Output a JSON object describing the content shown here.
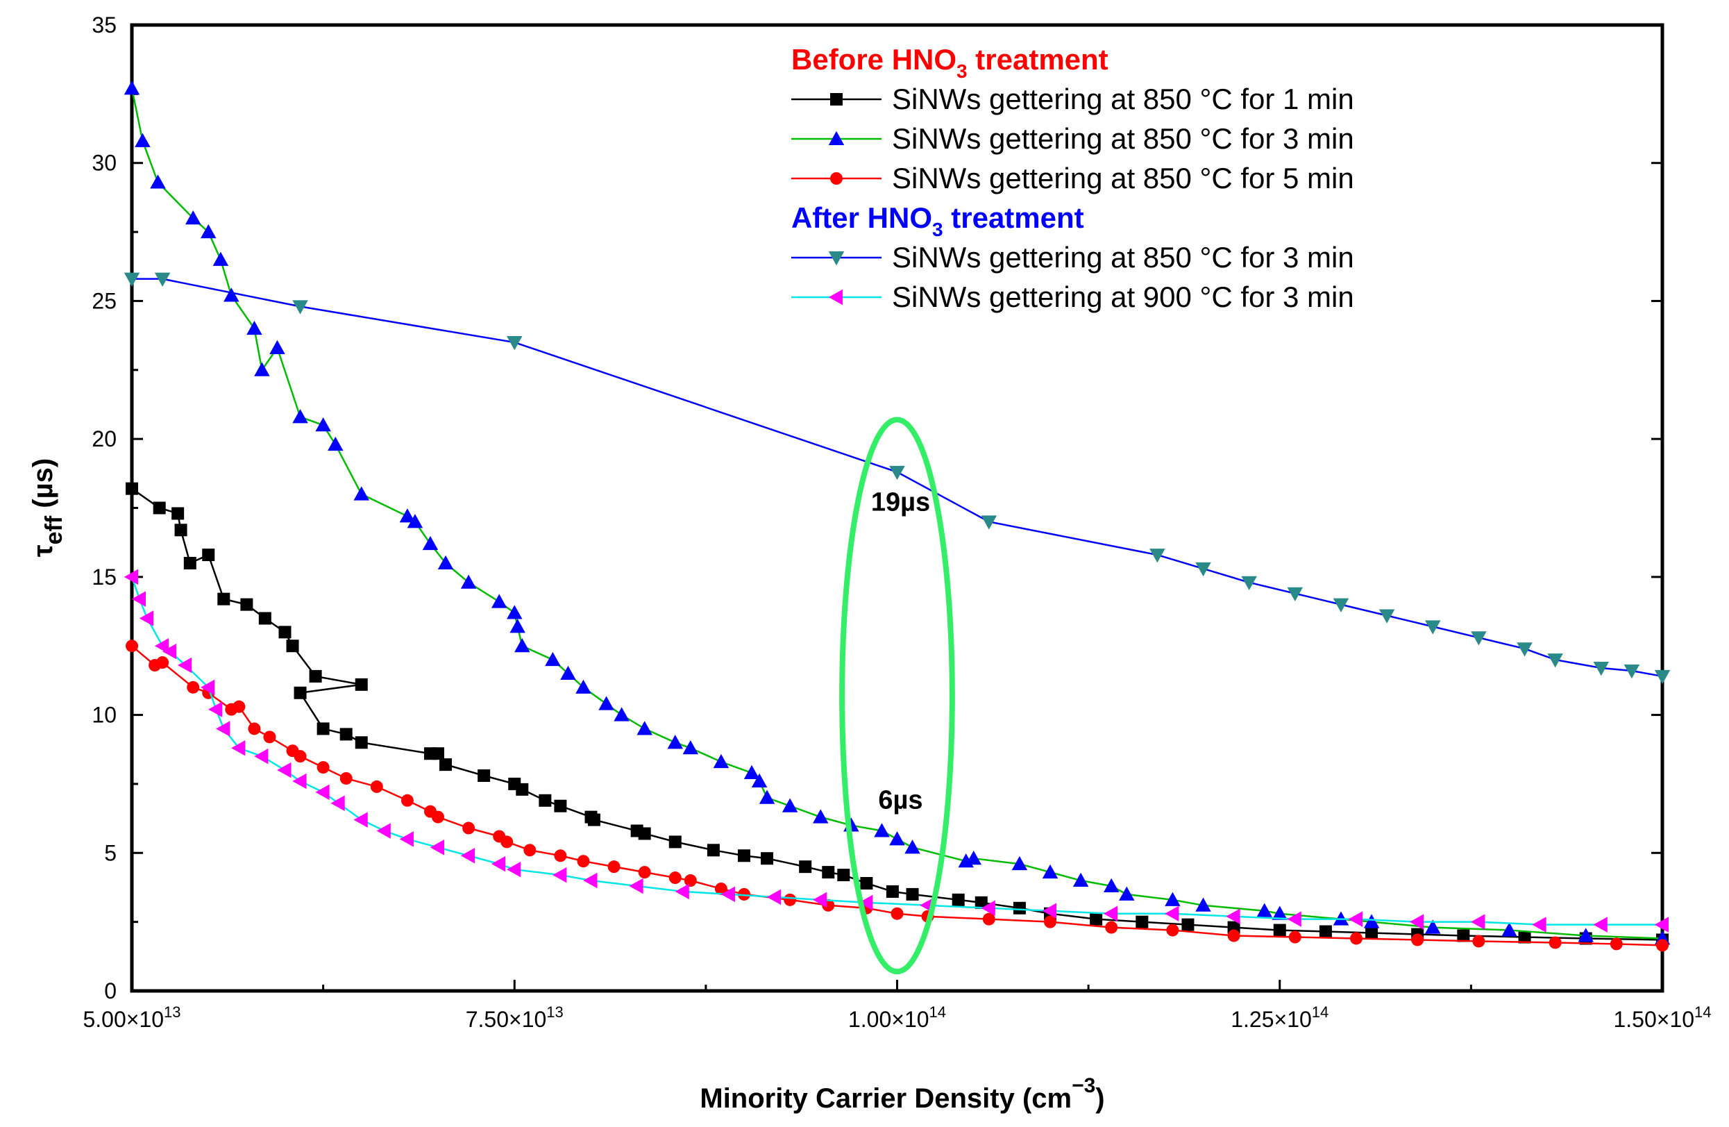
{
  "chart_data": {
    "type": "line",
    "xlabel": "Minority Carrier Density (cm",
    "xlabel_sup": "−3",
    "xlabel_end": ")",
    "ylabel_main": "τ",
    "ylabel_sub": "eff",
    "ylabel_unit": " (µs)",
    "xlim": [
      50000000000000.0,
      150000000000000.0
    ],
    "ylim": [
      0,
      35
    ],
    "x_ticks": [
      {
        "value": 50000000000000.0,
        "mantissa": "5.00×10",
        "exp": "13"
      },
      {
        "value": 75000000000000.0,
        "mantissa": "7.50×10",
        "exp": "13"
      },
      {
        "value": 100000000000000.0,
        "mantissa": "1.00×10",
        "exp": "14"
      },
      {
        "value": 125000000000000.0,
        "mantissa": "1.25×10",
        "exp": "14"
      },
      {
        "value": 150000000000000.0,
        "mantissa": "1.50×10",
        "exp": "14"
      }
    ],
    "y_ticks": [
      "0",
      "5",
      "10",
      "15",
      "20",
      "25",
      "30",
      "35"
    ],
    "legend_groups": [
      {
        "title_pre": "Before HNO",
        "title_sub": "3",
        "title_post": " treatment",
        "color": "#ff0000"
      },
      {
        "title_pre": "After HNO",
        "title_sub": "3",
        "title_post": " treatment",
        "color": "#0000ff"
      }
    ],
    "series": [
      {
        "name": "SiNWs gettering at 850 °C for 1 min",
        "group": 0,
        "marker": "square",
        "line_color": "#000000",
        "marker_color": "#000000",
        "x": [
          50000000000000.0,
          51800000000000.0,
          53000000000000.0,
          53200000000000.0,
          53800000000000.0,
          55000000000000.0,
          56000000000000.0,
          57500000000000.0,
          58700000000000.0,
          60000000000000.0,
          60500000000000.0,
          62000000000000.0,
          65000000000000.0,
          61000000000000.0,
          62500000000000.0,
          64000000000000.0,
          65000000000000.0,
          69500000000000.0,
          70000000000000.0,
          70500000000000.0,
          73000000000000.0,
          75000000000000.0,
          75500000000000.0,
          77000000000000.0,
          78000000000000.0,
          80000000000000.0,
          80200000000000.0,
          83000000000000.0,
          83500000000000.0,
          85500000000000.0,
          88000000000000.0,
          90000000000000.0,
          91500000000000.0,
          94000000000000.0,
          95500000000000.0,
          96500000000000.0,
          98000000000000.0,
          99700000000000.0,
          101000000000000.0,
          104000000000000.0,
          105500000000000.0,
          108000000000000.0,
          110000000000000.0,
          113000000000000.0,
          116000000000000.0,
          119000000000000.0,
          122000000000000.0,
          125000000000000.0,
          128000000000000.0,
          131000000000000.0,
          134000000000000.0,
          137000000000000.0,
          141000000000000.0,
          145000000000000.0,
          150000000000000.0
        ],
        "y": [
          18.2,
          17.5,
          17.3,
          16.7,
          15.5,
          15.8,
          14.2,
          14.0,
          13.5,
          13.0,
          12.5,
          11.4,
          11.1,
          10.8,
          9.5,
          9.3,
          9.0,
          8.6,
          8.6,
          8.2,
          7.8,
          7.5,
          7.3,
          6.9,
          6.7,
          6.3,
          6.2,
          5.8,
          5.7,
          5.4,
          5.1,
          4.9,
          4.8,
          4.5,
          4.3,
          4.2,
          3.9,
          3.6,
          3.5,
          3.3,
          3.2,
          3.0,
          2.8,
          2.6,
          2.5,
          2.4,
          2.3,
          2.2,
          2.15,
          2.1,
          2.05,
          2.0,
          1.95,
          1.9,
          1.85
        ]
      },
      {
        "name": "SiNWs gettering at 850 °C for 3 min",
        "group": 0,
        "marker": "triangle-up",
        "line_color": "#00bb00",
        "marker_color": "#0000ff",
        "x": [
          50000000000000.0,
          50700000000000.0,
          51700000000000.0,
          54000000000000.0,
          55000000000000.0,
          55800000000000.0,
          56500000000000.0,
          58000000000000.0,
          58500000000000.0,
          59500000000000.0,
          61000000000000.0,
          62500000000000.0,
          63300000000000.0,
          65000000000000.0,
          68000000000000.0,
          68500000000000.0,
          69500000000000.0,
          70500000000000.0,
          72000000000000.0,
          74000000000000.0,
          75000000000000.0,
          75200000000000.0,
          75500000000000.0,
          77500000000000.0,
          78500000000000.0,
          79500000000000.0,
          81000000000000.0,
          82000000000000.0,
          83500000000000.0,
          85500000000000.0,
          86500000000000.0,
          88500000000000.0,
          90500000000000.0,
          91000000000000.0,
          91500000000000.0,
          93000000000000.0,
          95000000000000.0,
          97000000000000.0,
          99000000000000.0,
          100000000000000.0,
          101000000000000.0,
          104500000000000.0,
          105000000000000.0,
          108000000000000.0,
          110000000000000.0,
          112000000000000.0,
          114000000000000.0,
          115000000000000.0,
          118000000000000.0,
          120000000000000.0,
          124000000000000.0,
          125000000000000.0,
          129000000000000.0,
          131000000000000.0,
          135000000000000.0,
          140000000000000.0,
          145000000000000.0,
          150000000000000.0
        ],
        "y": [
          32.7,
          30.8,
          29.3,
          28.0,
          27.5,
          26.5,
          25.2,
          24.0,
          22.5,
          23.3,
          20.8,
          20.5,
          19.8,
          18.0,
          17.2,
          17.0,
          16.2,
          15.5,
          14.8,
          14.1,
          13.7,
          13.2,
          12.5,
          12.0,
          11.5,
          11.0,
          10.4,
          10.0,
          9.5,
          9.0,
          8.8,
          8.3,
          7.9,
          7.6,
          7.0,
          6.7,
          6.3,
          6.0,
          5.8,
          5.5,
          5.2,
          4.7,
          4.8,
          4.6,
          4.3,
          4.0,
          3.8,
          3.5,
          3.3,
          3.1,
          2.9,
          2.8,
          2.6,
          2.5,
          2.3,
          2.2,
          2.0,
          1.9
        ]
      },
      {
        "name": "SiNWs gettering at 850 °C for 5 min",
        "group": 0,
        "marker": "circle",
        "line_color": "#ff0000",
        "marker_color": "#ff0000",
        "x": [
          50000000000000.0,
          51500000000000.0,
          52000000000000.0,
          54000000000000.0,
          55000000000000.0,
          56500000000000.0,
          57000000000000.0,
          58000000000000.0,
          59000000000000.0,
          60500000000000.0,
          61000000000000.0,
          62500000000000.0,
          64000000000000.0,
          66000000000000.0,
          68000000000000.0,
          69500000000000.0,
          70000000000000.0,
          72000000000000.0,
          74000000000000.0,
          74500000000000.0,
          76000000000000.0,
          78000000000000.0,
          79500000000000.0,
          81500000000000.0,
          83500000000000.0,
          85500000000000.0,
          86500000000000.0,
          88500000000000.0,
          90000000000000.0,
          93000000000000.0,
          95500000000000.0,
          98000000000000.0,
          100000000000000.0,
          102000000000000.0,
          106000000000000.0,
          110000000000000.0,
          114000000000000.0,
          118000000000000.0,
          122000000000000.0,
          126000000000000.0,
          130000000000000.0,
          134000000000000.0,
          138000000000000.0,
          143000000000000.0,
          147000000000000.0,
          150000000000000.0
        ],
        "y": [
          12.5,
          11.8,
          11.9,
          11.0,
          10.8,
          10.2,
          10.3,
          9.5,
          9.2,
          8.7,
          8.5,
          8.1,
          7.7,
          7.4,
          6.9,
          6.5,
          6.3,
          5.9,
          5.6,
          5.4,
          5.1,
          4.9,
          4.7,
          4.5,
          4.3,
          4.1,
          4.0,
          3.7,
          3.5,
          3.3,
          3.1,
          3.0,
          2.8,
          2.7,
          2.6,
          2.5,
          2.3,
          2.2,
          2.0,
          1.95,
          1.9,
          1.85,
          1.8,
          1.75,
          1.7,
          1.65
        ]
      },
      {
        "name": "SiNWs gettering at 850 °C for 3 min",
        "group": 1,
        "marker": "triangle-down",
        "line_color": "#0000ff",
        "marker_color": "#2a8a8a",
        "x": [
          50000000000000.0,
          52000000000000.0,
          61000000000000.0,
          75000000000000.0,
          100000000000000.0,
          106000000000000.0,
          117000000000000.0,
          120000000000000.0,
          123000000000000.0,
          126000000000000.0,
          129000000000000.0,
          132000000000000.0,
          135000000000000.0,
          138000000000000.0,
          141000000000000.0,
          143000000000000.0,
          146000000000000.0,
          148000000000000.0,
          150000000000000.0
        ],
        "y": [
          25.8,
          25.8,
          24.8,
          23.5,
          18.8,
          17.0,
          15.8,
          15.3,
          14.8,
          14.4,
          14.0,
          13.6,
          13.2,
          12.8,
          12.4,
          12.0,
          11.7,
          11.6,
          11.4
        ]
      },
      {
        "name": "SiNWs gettering at 900 °C for 3 min",
        "group": 1,
        "marker": "triangle-left",
        "line_color": "#00e5e5",
        "marker_color": "#ff00ff",
        "x": [
          50000000000000.0,
          50500000000000.0,
          51000000000000.0,
          52000000000000.0,
          52500000000000.0,
          53500000000000.0,
          55000000000000.0,
          55500000000000.0,
          56000000000000.0,
          57000000000000.0,
          58500000000000.0,
          60000000000000.0,
          61000000000000.0,
          62500000000000.0,
          63500000000000.0,
          65000000000000.0,
          66500000000000.0,
          68000000000000.0,
          70000000000000.0,
          72000000000000.0,
          74000000000000.0,
          75000000000000.0,
          78000000000000.0,
          80000000000000.0,
          83000000000000.0,
          86000000000000.0,
          89000000000000.0,
          92000000000000.0,
          95000000000000.0,
          98000000000000.0,
          102000000000000.0,
          106000000000000.0,
          110000000000000.0,
          114000000000000.0,
          118000000000000.0,
          122000000000000.0,
          126000000000000.0,
          130000000000000.0,
          134000000000000.0,
          138000000000000.0,
          142000000000000.0,
          146000000000000.0,
          150000000000000.0
        ],
        "y": [
          15.0,
          14.2,
          13.5,
          12.5,
          12.3,
          11.8,
          11.0,
          10.2,
          9.5,
          8.8,
          8.5,
          8.0,
          7.6,
          7.2,
          6.8,
          6.2,
          5.8,
          5.5,
          5.2,
          4.9,
          4.6,
          4.4,
          4.2,
          4.0,
          3.8,
          3.6,
          3.5,
          3.4,
          3.3,
          3.2,
          3.1,
          3.0,
          2.9,
          2.8,
          2.8,
          2.7,
          2.6,
          2.6,
          2.5,
          2.5,
          2.4,
          2.4,
          2.4
        ]
      }
    ],
    "annotations": [
      {
        "text": "19µs",
        "x": 100000000000000.0,
        "y": 17.4
      },
      {
        "text": "6µs",
        "x": 100000000000000.0,
        "y": 6.6
      }
    ],
    "ellipse": {
      "cx": 100000000000000.0,
      "cy": 10.7,
      "rx": 3600000000000.0,
      "ry": 10.0,
      "color": "#33ee66"
    }
  }
}
